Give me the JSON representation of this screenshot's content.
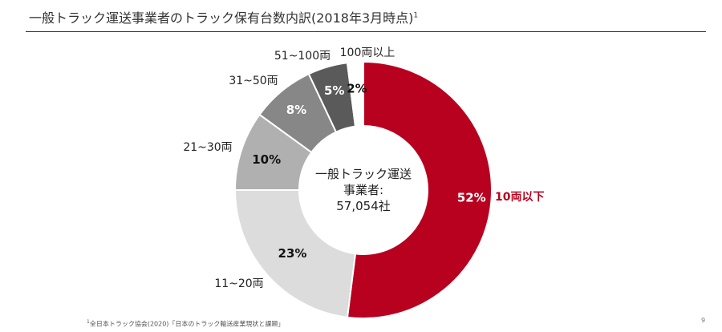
{
  "title": {
    "text": "一般トラック運送事業者のトラック保有台数内訳(2018年3月時点)",
    "footnote_marker": "1"
  },
  "center_label": {
    "line1": "一般トラック運送",
    "line2": "事業者:",
    "line3": "57,054社"
  },
  "chart_data": {
    "type": "pie",
    "donut": true,
    "slices": [
      {
        "category": "10両以下",
        "value": 52,
        "label": "52%",
        "color": "#b8001f",
        "label_color": "#ffffff",
        "category_color": "#b8001f"
      },
      {
        "category": "11~20両",
        "value": 23,
        "label": "23%",
        "color": "#dcdcdc",
        "label_color": "#111111",
        "category_color": "#222222"
      },
      {
        "category": "21~30両",
        "value": 10,
        "label": "10%",
        "color": "#b0b0b0",
        "label_color": "#111111",
        "category_color": "#222222"
      },
      {
        "category": "31~50両",
        "value": 8,
        "label": "8%",
        "color": "#878787",
        "label_color": "#ffffff",
        "category_color": "#222222"
      },
      {
        "category": "51~100両",
        "value": 5,
        "label": "5%",
        "color": "#5a5a5a",
        "label_color": "#ffffff",
        "category_color": "#222222"
      },
      {
        "category": "100両以上",
        "value": 2,
        "label": "2%",
        "color": "#ffffff",
        "label_color": "#111111",
        "category_color": "#222222"
      }
    ]
  },
  "footnote": {
    "marker": "1",
    "text": "全日本トラック協会(2020)「日本のトラック輸送産業現状と課題」"
  },
  "page_number": "9"
}
